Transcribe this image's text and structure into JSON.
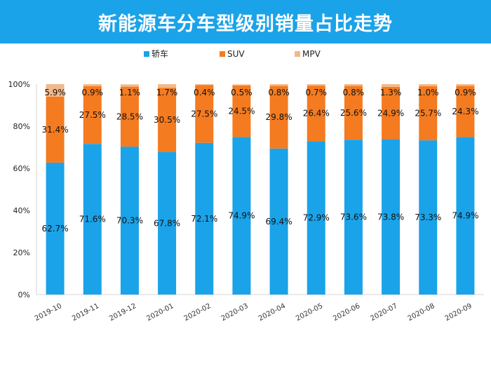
{
  "header": {
    "background": "#1AA3E8"
  },
  "chart_data": {
    "type": "bar",
    "stacked": true,
    "title": "新能源车分车型级别销量占比走势",
    "xlabel": "",
    "ylabel": "",
    "categories": [
      "2019-10",
      "2019-11",
      "2019-12",
      "2020-01",
      "2020-02",
      "2020-03",
      "2020-04",
      "2020-05",
      "2020-06",
      "2020-07",
      "2020-08",
      "2020-09"
    ],
    "series": [
      {
        "name": "轿车",
        "color": "#1AA3E8",
        "values": [
          62.7,
          71.6,
          70.3,
          67.8,
          72.1,
          74.9,
          69.4,
          72.9,
          73.6,
          73.8,
          73.3,
          74.9
        ]
      },
      {
        "name": "SUV",
        "color": "#F47B20",
        "values": [
          31.4,
          27.5,
          28.5,
          30.5,
          27.5,
          24.5,
          29.8,
          26.4,
          25.6,
          24.9,
          25.7,
          24.3
        ]
      },
      {
        "name": "MPV",
        "color": "#F2B98A",
        "values": [
          5.9,
          0.9,
          1.1,
          1.7,
          0.4,
          0.5,
          0.8,
          0.7,
          0.8,
          1.3,
          1.0,
          0.9
        ]
      }
    ],
    "ylim": [
      0,
      100
    ],
    "yticks": [
      "0%",
      "20%",
      "40%",
      "60%",
      "80%",
      "100%"
    ],
    "grid": false,
    "legend_position": "top-center",
    "value_suffix": "%"
  }
}
